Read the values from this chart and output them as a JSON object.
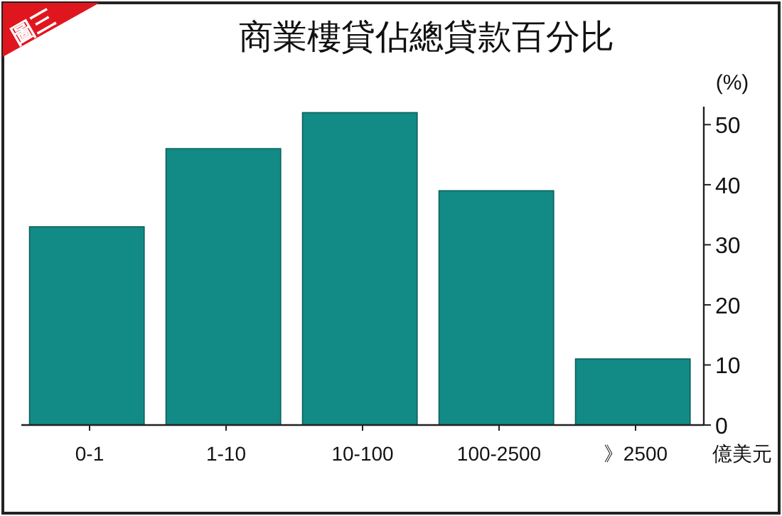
{
  "chart_data": {
    "type": "bar",
    "title": "商業樓貸佔總貸款百分比",
    "annotations": [
      "圖三"
    ],
    "xlabel": "億美元",
    "ylabel": "(%)",
    "categories": [
      "0-1",
      "1-10",
      "10-100",
      "100-2500",
      "》2500"
    ],
    "values": [
      33,
      46,
      52,
      39,
      11
    ],
    "color": "#128a85",
    "ylim": [
      0,
      53
    ],
    "yticks": [
      0,
      10,
      20,
      30,
      40,
      50
    ]
  }
}
